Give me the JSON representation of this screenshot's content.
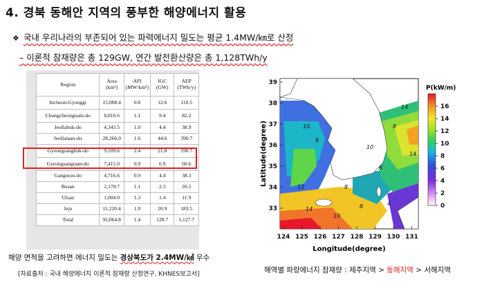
{
  "title": "4.  경북 동해안 지역의 풍부한 해양에너지 활용",
  "bullets": {
    "b1_mark": "❖",
    "b1_text": "국내 우리나라의 부존되어 있는 파력에너지 밀도는 평균 1.4MW/㎞로 산정",
    "b2_text": "– 이론적 잠재량은 총 129GW, 연간 발전환산량은 총 1,128TWh/y"
  },
  "table": {
    "headers": [
      "Region",
      "Area (km²)",
      "API (MW/km²)",
      "IGC (GW)",
      "AEP (TWh/y)"
    ],
    "rows": [
      [
        "Incheon-Gyunggi",
        "15,008.4",
        "0.8",
        "12.6",
        "110.5"
      ],
      [
        "Chungcheongnam-do",
        "8,810.6",
        "1.1",
        "9.4",
        "82.2"
      ],
      [
        "Jeollabuk-do",
        "4,343.5",
        "1.0",
        "4.4",
        "38.9"
      ],
      [
        "Jeollanam-do",
        "28,266.0",
        "1.6",
        "44.6",
        "390.7"
      ],
      [
        "Gyeongsangbuk-do",
        "9,109.6",
        "2.4",
        "21.8",
        "190.7"
      ],
      [
        "Gyeongsangnam-do",
        "7,415.0",
        "0.9",
        "6.9",
        "60.6"
      ],
      [
        "Gangwon-do",
        "4,716.6",
        "0.9",
        "4.4",
        "38.3"
      ],
      [
        "Busan",
        "2,170.7",
        "1.1",
        "2.3",
        "20.5"
      ],
      [
        "Ulsan",
        "1,004.0",
        "1.3",
        "1.4",
        "11.9"
      ],
      [
        "Jeju",
        "11,220.4",
        "1.9",
        "20.9",
        "183.5"
      ],
      [
        "Total",
        "92,064.8",
        "1.4",
        "128.7",
        "1,127.7"
      ]
    ]
  },
  "footer": {
    "line1_prefix": "해양 면적을 고려하면 에너지 밀도는 ",
    "line1_strong": "경상북도가 2.4MW/㎢",
    "line1_suffix": " 우수",
    "line2": "[자료출처 : 국내 해양에너지 이론적 잠재량 산정연구, KHNES보고서]"
  },
  "map": {
    "xlabel": "Longitude(degree)",
    "ylabel": "Latitude(degree)",
    "x_ticks": [
      "124",
      "125",
      "126",
      "127",
      "128",
      "129",
      "130",
      "131"
    ],
    "y_ticks": [
      "33",
      "34",
      "35",
      "36",
      "37",
      "38",
      "39"
    ],
    "colorbar_title": "P(kW/m)",
    "colorbar_ticks": [
      "16",
      "14",
      "12",
      "10",
      "8",
      "6",
      "4",
      "2",
      "0"
    ],
    "contour_labels": [
      "14",
      "8",
      "10",
      "8",
      "12",
      "14",
      "10",
      "8",
      "6",
      "4",
      "14",
      "10",
      "8"
    ]
  },
  "caption": {
    "prefix": "해역별 파랑에너지 잠재량 : 제주지역 > ",
    "em": "동해지역",
    "suffix": " > 서해지역"
  }
}
